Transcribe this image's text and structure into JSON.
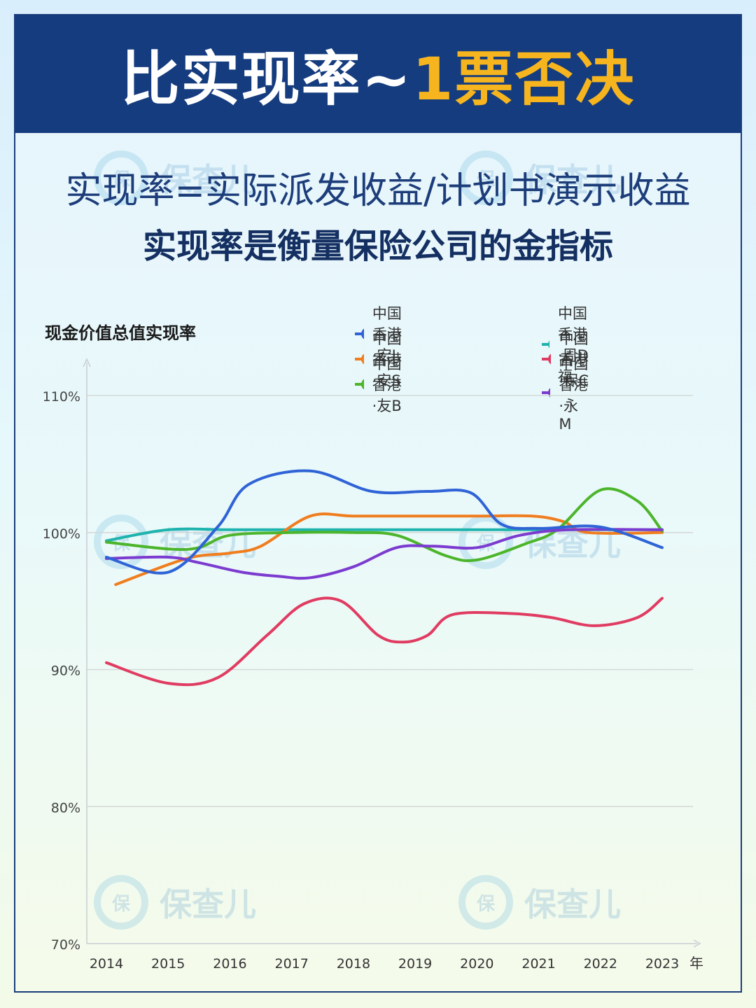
{
  "header": {
    "title_main": "比实现率~",
    "title_accent": "1票否决",
    "subtitle_formula": "实现率=实际派发收益/计划书演示收益",
    "subtitle_bold": "实现率是衡量保险公司的金指标"
  },
  "watermark": {
    "logo_char": "保",
    "text": "保查儿"
  },
  "colors": {
    "banner": "#153c7e",
    "accent": "#f6b51e",
    "grid": "#d4d8d8",
    "axis": "#c8ccd2"
  },
  "chart_data": {
    "type": "line",
    "ylabel": "现金价值总值实现率",
    "x_unit": "年",
    "ylim": [
      70,
      110
    ],
    "yticks": [
      70,
      80,
      90,
      100,
      110
    ],
    "ytick_labels": [
      "70%",
      "80%",
      "90%",
      "100%",
      "110%"
    ],
    "x": [
      2014,
      2015,
      2016,
      2017,
      2018,
      2019,
      2020,
      2021,
      2022,
      2023
    ],
    "xtick_labels": [
      "2014",
      "2015",
      "2016",
      "2017",
      "2018",
      "2019",
      "2020",
      "2021",
      "2022",
      "2023"
    ],
    "grid": true,
    "legend_position": "top-right",
    "series": [
      {
        "name": "中国香港·宏L",
        "color": "#2f63d6",
        "points": [
          [
            2014,
            98.2
          ],
          [
            2015,
            97.1
          ],
          [
            2015.8,
            100.4
          ],
          [
            2016.3,
            103.5
          ],
          [
            2017.3,
            104.5
          ],
          [
            2018.3,
            103.0
          ],
          [
            2019.2,
            103.0
          ],
          [
            2019.9,
            102.9
          ],
          [
            2020.4,
            100.6
          ],
          [
            2021.0,
            100.3
          ],
          [
            2022.0,
            100.4
          ],
          [
            2023,
            98.9
          ]
        ]
      },
      {
        "name": "中国香港·安S",
        "color": "#f07d1e",
        "points": [
          [
            2014.15,
            96.2
          ],
          [
            2015.3,
            98.1
          ],
          [
            2016.0,
            98.5
          ],
          [
            2016.5,
            99.0
          ],
          [
            2017.3,
            101.2
          ],
          [
            2018.0,
            101.2
          ],
          [
            2019.0,
            101.2
          ],
          [
            2020.0,
            101.2
          ],
          [
            2020.9,
            101.2
          ],
          [
            2021.4,
            100.8
          ],
          [
            2021.8,
            100.0
          ],
          [
            2023,
            100.0
          ]
        ]
      },
      {
        "name": "中国香港·友B",
        "color": "#4cb52b",
        "points": [
          [
            2014,
            99.3
          ],
          [
            2015.0,
            98.8
          ],
          [
            2015.5,
            98.9
          ],
          [
            2016.0,
            99.8
          ],
          [
            2017.0,
            100.0
          ],
          [
            2018.0,
            100.0
          ],
          [
            2018.7,
            99.8
          ],
          [
            2019.5,
            98.3
          ],
          [
            2020.0,
            98.0
          ],
          [
            2020.8,
            99.2
          ],
          [
            2021.3,
            100.2
          ],
          [
            2022.0,
            103.1
          ],
          [
            2022.6,
            102.3
          ],
          [
            2023,
            100.1
          ]
        ]
      },
      {
        "name": "中国香港·周D福",
        "color": "#1fb3ae",
        "points": [
          [
            2014,
            99.4
          ],
          [
            2015,
            100.2
          ],
          [
            2016,
            100.2
          ],
          [
            2017,
            100.2
          ],
          [
            2018,
            100.2
          ],
          [
            2019,
            100.2
          ],
          [
            2020,
            100.2
          ],
          [
            2021,
            100.2
          ],
          [
            2022,
            100.2
          ],
          [
            2023,
            100.2
          ]
        ]
      },
      {
        "name": "中国香港·保C",
        "color": "#e03c62",
        "points": [
          [
            2014,
            90.5
          ],
          [
            2015,
            89.0
          ],
          [
            2015.8,
            89.4
          ],
          [
            2016.6,
            92.5
          ],
          [
            2017.2,
            94.8
          ],
          [
            2017.8,
            95.0
          ],
          [
            2018.4,
            92.5
          ],
          [
            2018.8,
            92.0
          ],
          [
            2019.2,
            92.5
          ],
          [
            2019.6,
            94.0
          ],
          [
            2020.5,
            94.1
          ],
          [
            2021.2,
            93.8
          ],
          [
            2021.9,
            93.2
          ],
          [
            2022.6,
            93.8
          ],
          [
            2023,
            95.2
          ]
        ]
      },
      {
        "name": "中国香港·永M",
        "color": "#7c3bd0",
        "points": [
          [
            2014,
            98.1
          ],
          [
            2015,
            98.2
          ],
          [
            2015.5,
            97.8
          ],
          [
            2016.2,
            97.1
          ],
          [
            2016.8,
            96.8
          ],
          [
            2017.3,
            96.7
          ],
          [
            2018.0,
            97.5
          ],
          [
            2018.7,
            98.9
          ],
          [
            2019.3,
            99.0
          ],
          [
            2020.0,
            98.9
          ],
          [
            2020.7,
            99.8
          ],
          [
            2021.5,
            100.2
          ],
          [
            2023,
            100.2
          ]
        ]
      }
    ]
  }
}
